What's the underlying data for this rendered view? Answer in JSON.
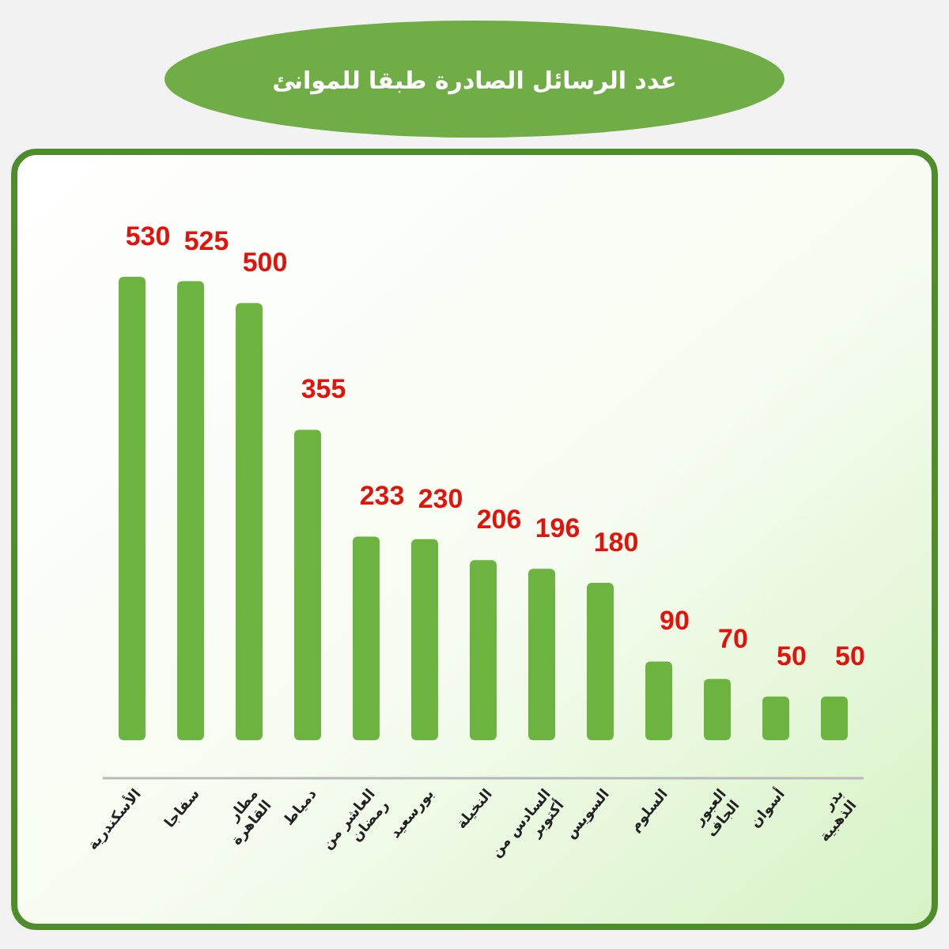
{
  "chart_data": {
    "type": "bar",
    "title": "عدد الرسائل الصادرة طبقا للموانئ",
    "categories": [
      "الأسكندرية",
      "سفاجا",
      "مطار القاهرة",
      "دمياط",
      "العاشر من رمضان",
      "بورسعيد",
      "النخيلة",
      "السادس من أكتوبر",
      "السويس",
      "السلوم",
      "العبور الجاف",
      "أسوان",
      "بدر الذهبية"
    ],
    "values": [
      530,
      525,
      500,
      355,
      233,
      230,
      206,
      196,
      180,
      90,
      70,
      50,
      50
    ],
    "color": "#6cb33f",
    "data_labels": true
  }
}
